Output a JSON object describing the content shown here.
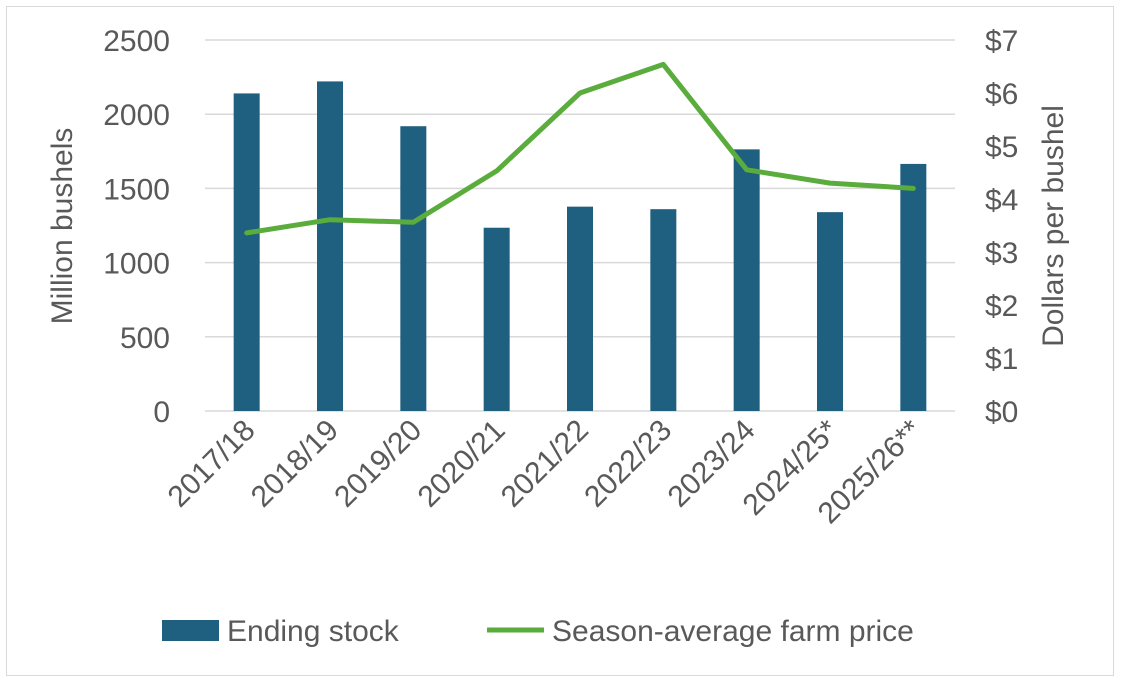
{
  "chart_data": {
    "type": "bar",
    "categories": [
      "2017/18",
      "2018/19",
      "2019/20",
      "2020/21",
      "2021/22",
      "2022/23",
      "2023/24",
      "2024/25*",
      "2025/26**"
    ],
    "series": [
      {
        "name": "Ending stock",
        "type": "bar",
        "axis": "left",
        "color": "#1f5f7f",
        "values": [
          2140,
          2221,
          1919,
          1235,
          1377,
          1360,
          1763,
          1340,
          1665
        ]
      },
      {
        "name": "Season-average farm price",
        "type": "line",
        "axis": "right",
        "color": "#5aad3c",
        "values": [
          3.36,
          3.61,
          3.56,
          4.53,
          6.0,
          6.54,
          4.55,
          4.3,
          4.2
        ]
      }
    ],
    "ylabel": "Million bushels",
    "ylim": [
      0,
      2500
    ],
    "yticks": [
      "0",
      "500",
      "1000",
      "1500",
      "2000",
      "2500"
    ],
    "y2label": "Dollars per bushel",
    "y2lim": [
      0,
      7
    ],
    "y2ticks": [
      "$0",
      "$1",
      "$2",
      "$3",
      "$4",
      "$5",
      "$6",
      "$7"
    ],
    "grid": true,
    "legend": "bottom",
    "title": "",
    "xlabel": ""
  }
}
